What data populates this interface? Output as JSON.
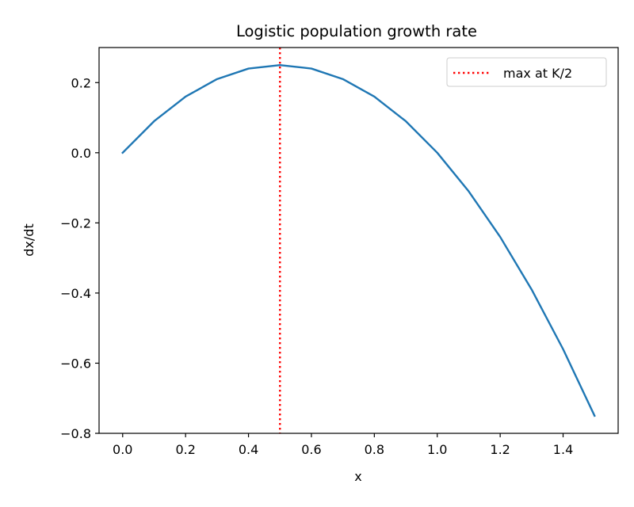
{
  "chart_data": {
    "type": "line",
    "title": "Logistic population growth rate",
    "xlabel": "x",
    "ylabel": "dx/dt",
    "xlim": [
      -0.075,
      1.575
    ],
    "ylim": [
      -0.8,
      0.3
    ],
    "xticks": [
      0.0,
      0.2,
      0.4,
      0.6,
      0.8,
      1.0,
      1.2,
      1.4
    ],
    "xtick_labels": [
      "0.0",
      "0.2",
      "0.4",
      "0.6",
      "0.8",
      "1.0",
      "1.2",
      "1.4"
    ],
    "yticks": [
      -0.8,
      -0.6,
      -0.4,
      -0.2,
      0.0,
      0.2
    ],
    "ytick_labels": [
      "−0.8",
      "−0.6",
      "−0.4",
      "−0.2",
      "0.0",
      "0.2"
    ],
    "grid": false,
    "legend_position": "upper right",
    "series": [
      {
        "color": "#1f77b4",
        "style": "solid",
        "x": [
          0.0,
          0.1,
          0.2,
          0.3,
          0.4,
          0.5,
          0.6,
          0.7,
          0.8,
          0.9,
          1.0,
          1.1,
          1.2,
          1.3,
          1.4,
          1.5
        ],
        "y": [
          0.0,
          0.09,
          0.16,
          0.21,
          0.24,
          0.25,
          0.24,
          0.21,
          0.16,
          0.09,
          0.0,
          -0.11,
          -0.24,
          -0.39,
          -0.56,
          -0.75
        ]
      }
    ],
    "vlines": [
      {
        "name": "max at K/2",
        "x": 0.5,
        "color": "#ff0000",
        "style": "dotted"
      }
    ]
  }
}
